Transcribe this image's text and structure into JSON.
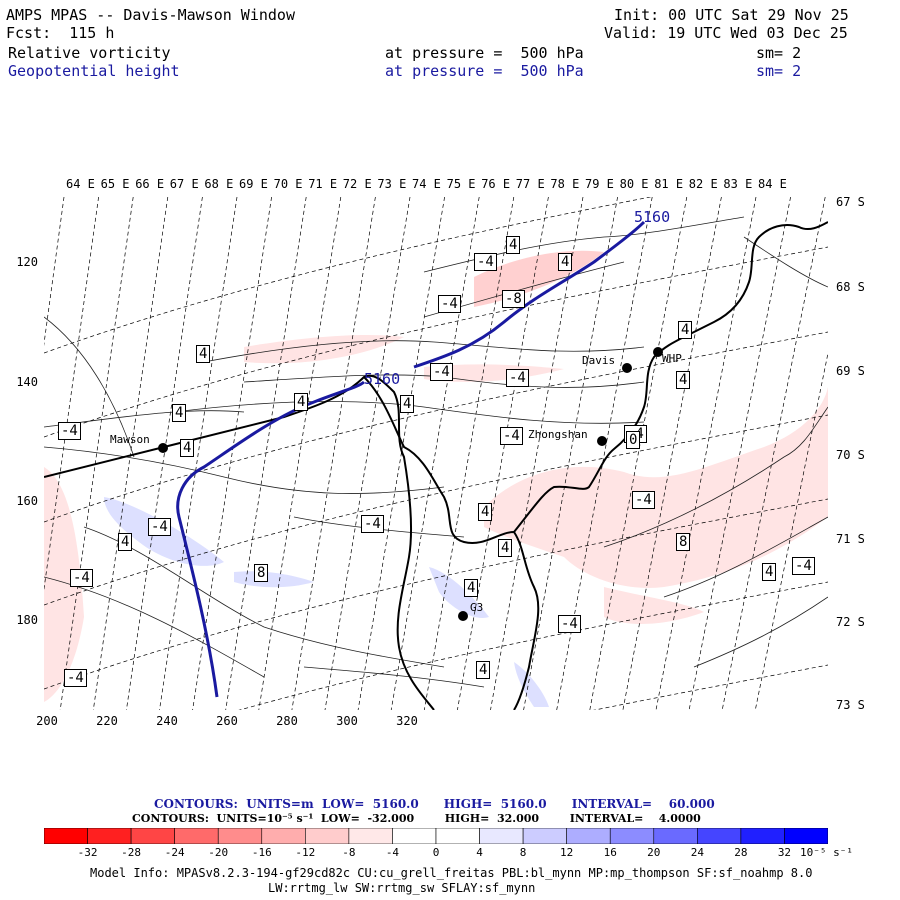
{
  "header": {
    "title": "AMPS MPAS -- Davis-Mawson Window",
    "fcst": "Fcst:  115 h",
    "init": "Init: 00 UTC Sat 29 Nov 25",
    "valid": "Valid: 19 UTC Wed 03 Dec 25",
    "field1_name": "Relative vorticity",
    "field1_pressure": "at pressure =  500 hPa",
    "field1_sm": "sm= 2",
    "field2_name": "Geopotential height",
    "field2_pressure": "at pressure =  500 hPa",
    "field2_sm": "sm= 2"
  },
  "axes": {
    "lon_labels": [
      "64 E",
      "65 E",
      "66 E",
      "67 E",
      "68 E",
      "69 E",
      "70 E",
      "71 E",
      "72 E",
      "73 E",
      "74 E",
      "75 E",
      "76 E",
      "77 E",
      "78 E",
      "79 E",
      "80 E",
      "81 E",
      "82 E",
      "83 E",
      "84 E"
    ],
    "lat_labels": [
      "67 S",
      "68 S",
      "69 S",
      "70 S",
      "71 S",
      "72 S",
      "73 S"
    ],
    "y_ticks": [
      "120",
      "140",
      "160",
      "180"
    ],
    "x_ticks": [
      "200",
      "220",
      "240",
      "260",
      "280",
      "300",
      "320"
    ]
  },
  "stations": [
    {
      "name": "Mawson"
    },
    {
      "name": "Davis"
    },
    {
      "name": "WHP"
    },
    {
      "name": "Zhongshan"
    },
    {
      "name": "G3"
    }
  ],
  "contour_labels": {
    "height": [
      "5160",
      "5160"
    ],
    "vorticity": [
      "4",
      "-4",
      "4",
      "-8",
      "-4",
      "4",
      "-4",
      "-4",
      "4",
      "4",
      "4",
      "-4",
      "4",
      "-4",
      "-4",
      "4",
      "-4",
      "4",
      "-4",
      "4",
      "8",
      "-4",
      "8",
      "4",
      "-4",
      "-4",
      "4",
      "4",
      "-4",
      "4",
      "-4",
      "4",
      "0"
    ]
  },
  "captions": {
    "line1": "CONTOURS:  UNITS=m  LOW=  5160.0      HIGH=  5160.0      INTERVAL=    60.000",
    "line2": "CONTOURS:  UNITS=10⁻⁵ s⁻¹  LOW=  -32.000        HIGH=  32.000        INTERVAL=    4.0000"
  },
  "colorbar": {
    "labels": [
      "-32",
      "-28",
      "-24",
      "-20",
      "-16",
      "-12",
      "-8",
      "-4",
      "0",
      "4",
      "8",
      "12",
      "16",
      "20",
      "24",
      "28",
      "32"
    ],
    "unit": "10⁻⁵ s⁻¹",
    "colors": [
      "#ff0000",
      "#ff2020",
      "#ff4545",
      "#ff6a6a",
      "#ff8c8c",
      "#ffadad",
      "#ffcccc",
      "#ffe8e8",
      "#ffffff",
      "#ffffff",
      "#e8e8ff",
      "#ccccff",
      "#adadff",
      "#8c8cff",
      "#6a6aff",
      "#4545ff",
      "#2020ff",
      "#0000ff"
    ]
  },
  "model_info": {
    "line1": "Model Info: MPASv8.2.3-194-gf29cd82c CU:cu_grell_freitas PBL:bl_mynn MP:mp_thompson SF:sf_noahmp 8.0",
    "line2": "LW:rrtmg_lw SW:rrtmg_sw SFLAY:sf_mynn"
  }
}
